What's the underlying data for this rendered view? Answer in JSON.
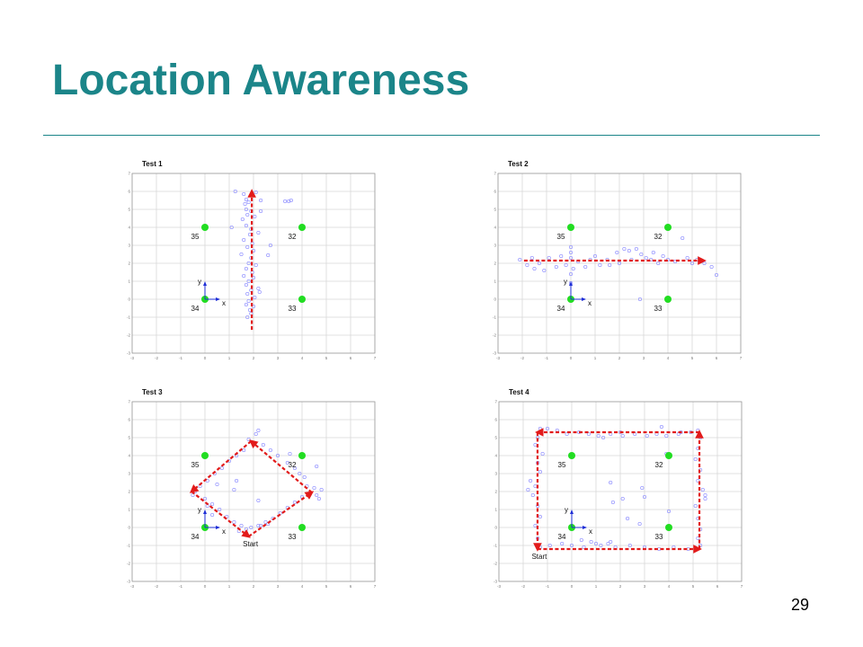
{
  "slide": {
    "title": "Location Awareness",
    "page_number": "29"
  },
  "colors": {
    "title": "#1b8589",
    "rule": "#1b8589",
    "anchor": "#22dd22",
    "path": "#e21b1b",
    "points": "#8e8eff",
    "axis_indicator": "#1f2fd6",
    "grid": "#d8d8d8",
    "frame": "#9a9a9a"
  },
  "chart_data": [
    {
      "type": "scatter",
      "title": "Test 1",
      "xlim": [
        -3,
        7
      ],
      "ylim": [
        -3,
        7
      ],
      "x_ticks": [
        -3,
        -2,
        -1,
        0,
        1,
        2,
        3,
        4,
        5,
        6,
        7
      ],
      "y_ticks": [
        -3,
        -2,
        -1,
        0,
        1,
        2,
        3,
        4,
        5,
        6,
        7
      ],
      "grid": true,
      "anchors": [
        {
          "label": "35",
          "x": 0,
          "y": 4
        },
        {
          "label": "32",
          "x": 4,
          "y": 4
        },
        {
          "label": "34",
          "x": 0,
          "y": 0
        },
        {
          "label": "33",
          "x": 4,
          "y": 0
        }
      ],
      "axis_indicator": {
        "x": 0,
        "y": 0,
        "x_label": "x",
        "y_label": "y"
      },
      "path": [
        [
          1.93,
          -1.7
        ],
        [
          1.93,
          6.0
        ]
      ],
      "points": [
        [
          1.25,
          6.0
        ],
        [
          2.1,
          5.95
        ],
        [
          1.6,
          5.85
        ],
        [
          1.7,
          5.55
        ],
        [
          2.3,
          5.5
        ],
        [
          1.65,
          5.3
        ],
        [
          1.8,
          5.4
        ],
        [
          1.7,
          5.0
        ],
        [
          2.3,
          4.9
        ],
        [
          1.9,
          4.9
        ],
        [
          1.75,
          4.7
        ],
        [
          2.05,
          4.6
        ],
        [
          1.55,
          4.45
        ],
        [
          1.1,
          4.0
        ],
        [
          1.7,
          4.1
        ],
        [
          1.9,
          3.9
        ],
        [
          2.2,
          3.7
        ],
        [
          1.85,
          3.6
        ],
        [
          1.6,
          3.3
        ],
        [
          1.95,
          3.1
        ],
        [
          2.7,
          3.0
        ],
        [
          1.75,
          2.9
        ],
        [
          2.0,
          2.7
        ],
        [
          1.5,
          2.5
        ],
        [
          2.6,
          2.45
        ],
        [
          1.9,
          2.3
        ],
        [
          1.8,
          2.0
        ],
        [
          2.1,
          1.9
        ],
        [
          1.7,
          1.7
        ],
        [
          1.95,
          1.5
        ],
        [
          1.6,
          1.3
        ],
        [
          2.0,
          1.2
        ],
        [
          1.8,
          1.0
        ],
        [
          1.7,
          0.8
        ],
        [
          2.2,
          0.6
        ],
        [
          1.9,
          0.5
        ],
        [
          2.25,
          0.4
        ],
        [
          1.75,
          0.3
        ],
        [
          2.05,
          0.1
        ],
        [
          1.8,
          -0.1
        ],
        [
          1.7,
          -0.3
        ],
        [
          2.0,
          -0.4
        ],
        [
          1.85,
          -0.6
        ],
        [
          1.9,
          -0.8
        ],
        [
          1.75,
          -1.0
        ],
        [
          3.3,
          5.45
        ],
        [
          3.45,
          5.45
        ],
        [
          3.55,
          5.5
        ]
      ]
    },
    {
      "type": "scatter",
      "title": "Test 2",
      "xlim": [
        -3,
        7
      ],
      "ylim": [
        -3,
        7
      ],
      "x_ticks": [
        -3,
        -2,
        -1,
        0,
        1,
        2,
        3,
        4,
        5,
        6,
        7
      ],
      "y_ticks": [
        -3,
        -2,
        -1,
        0,
        1,
        2,
        3,
        4,
        5,
        6,
        7
      ],
      "grid": true,
      "anchors": [
        {
          "label": "35",
          "x": 0,
          "y": 4
        },
        {
          "label": "32",
          "x": 4,
          "y": 4
        },
        {
          "label": "34",
          "x": 0,
          "y": 0
        },
        {
          "label": "33",
          "x": 4,
          "y": 0
        }
      ],
      "axis_indicator": {
        "x": 0,
        "y": 0,
        "x_label": "x",
        "y_label": "y"
      },
      "path": [
        [
          -1.93,
          2.15
        ],
        [
          5.48,
          2.15
        ]
      ],
      "points": [
        [
          -2.1,
          2.2
        ],
        [
          -1.8,
          1.9
        ],
        [
          -1.6,
          2.3
        ],
        [
          -1.5,
          1.7
        ],
        [
          -1.3,
          2.0
        ],
        [
          -1.1,
          1.6
        ],
        [
          -0.9,
          2.3
        ],
        [
          -0.6,
          1.8
        ],
        [
          -0.4,
          2.4
        ],
        [
          -0.2,
          1.9
        ],
        [
          0.0,
          2.9
        ],
        [
          0.0,
          2.6
        ],
        [
          0.0,
          2.3
        ],
        [
          0.1,
          1.7
        ],
        [
          0.0,
          1.4
        ],
        [
          0.0,
          0.9
        ],
        [
          0.3,
          2.1
        ],
        [
          0.6,
          1.8
        ],
        [
          0.8,
          2.2
        ],
        [
          1.0,
          2.4
        ],
        [
          1.2,
          1.9
        ],
        [
          1.5,
          2.2
        ],
        [
          1.6,
          1.9
        ],
        [
          1.9,
          2.6
        ],
        [
          2.0,
          2.0
        ],
        [
          2.2,
          2.8
        ],
        [
          2.4,
          2.7
        ],
        [
          2.5,
          2.2
        ],
        [
          2.7,
          2.8
        ],
        [
          2.9,
          2.5
        ],
        [
          3.1,
          2.3
        ],
        [
          3.3,
          2.2
        ],
        [
          3.4,
          2.6
        ],
        [
          3.6,
          2.0
        ],
        [
          3.8,
          2.4
        ],
        [
          4.0,
          2.2
        ],
        [
          4.3,
          2.1
        ],
        [
          4.6,
          3.4
        ],
        [
          4.8,
          2.3
        ],
        [
          5.0,
          2.0
        ],
        [
          5.2,
          2.2
        ],
        [
          5.5,
          2.0
        ],
        [
          5.8,
          1.8
        ],
        [
          6.0,
          1.35
        ],
        [
          2.85,
          0.0
        ]
      ]
    },
    {
      "type": "scatter",
      "title": "Test 3",
      "xlim": [
        -3,
        7
      ],
      "ylim": [
        -3,
        7
      ],
      "x_ticks": [
        -3,
        -2,
        -1,
        0,
        1,
        2,
        3,
        4,
        5,
        6,
        7
      ],
      "y_ticks": [
        -3,
        -2,
        -1,
        0,
        1,
        2,
        3,
        4,
        5,
        6,
        7
      ],
      "grid": true,
      "anchors": [
        {
          "label": "35",
          "x": 0,
          "y": 4
        },
        {
          "label": "32",
          "x": 4,
          "y": 4
        },
        {
          "label": "34",
          "x": 0,
          "y": 0
        },
        {
          "label": "33",
          "x": 4,
          "y": 0
        }
      ],
      "axis_indicator": {
        "x": 0,
        "y": 0,
        "x_label": "x",
        "y_label": "y"
      },
      "path": [
        [
          1.8,
          -0.5
        ],
        [
          4.4,
          1.95
        ],
        [
          1.9,
          4.8
        ],
        [
          -0.55,
          2.0
        ],
        [
          1.8,
          -0.5
        ]
      ],
      "start_label": "Start",
      "points": [
        [
          2.2,
          0.1
        ],
        [
          2.5,
          0.3
        ],
        [
          2.8,
          0.5
        ],
        [
          3.1,
          0.8
        ],
        [
          3.4,
          1.1
        ],
        [
          3.7,
          1.4
        ],
        [
          4.0,
          1.7
        ],
        [
          4.3,
          1.9
        ],
        [
          4.6,
          1.8
        ],
        [
          4.7,
          1.6
        ],
        [
          4.5,
          2.2
        ],
        [
          4.8,
          2.1
        ],
        [
          4.2,
          2.3
        ],
        [
          4.1,
          2.8
        ],
        [
          3.9,
          3.0
        ],
        [
          3.7,
          3.3
        ],
        [
          3.4,
          3.6
        ],
        [
          3.0,
          4.0
        ],
        [
          2.7,
          4.3
        ],
        [
          2.4,
          4.6
        ],
        [
          2.1,
          5.2
        ],
        [
          2.2,
          5.4
        ],
        [
          1.8,
          4.9
        ],
        [
          4.6,
          3.4
        ],
        [
          3.5,
          4.1
        ],
        [
          1.6,
          4.3
        ],
        [
          1.3,
          4.0
        ],
        [
          1.0,
          3.7
        ],
        [
          0.7,
          3.3
        ],
        [
          0.4,
          3.0
        ],
        [
          0.1,
          2.6
        ],
        [
          -0.2,
          2.3
        ],
        [
          -0.4,
          2.0
        ],
        [
          -0.5,
          1.8
        ],
        [
          0.5,
          2.4
        ],
        [
          1.2,
          2.1
        ],
        [
          1.3,
          2.6
        ],
        [
          0.0,
          1.6
        ],
        [
          0.3,
          1.3
        ],
        [
          0.6,
          1.0
        ],
        [
          0.9,
          0.6
        ],
        [
          1.2,
          0.3
        ],
        [
          1.5,
          0.1
        ],
        [
          1.7,
          -0.1
        ],
        [
          1.9,
          0.0
        ],
        [
          2.3,
          0.1
        ],
        [
          2.6,
          0.2
        ],
        [
          1.4,
          -0.2
        ],
        [
          0.1,
          1.2
        ],
        [
          0.3,
          0.7
        ],
        [
          2.2,
          1.5
        ]
      ]
    },
    {
      "type": "scatter",
      "title": "Test 4",
      "xlim": [
        -3,
        7
      ],
      "ylim": [
        -3,
        7
      ],
      "x_ticks": [
        -3,
        -2,
        -1,
        0,
        1,
        2,
        3,
        4,
        5,
        6,
        7
      ],
      "y_ticks": [
        -3,
        -2,
        -1,
        0,
        1,
        2,
        3,
        4,
        5,
        6,
        7
      ],
      "grid": true,
      "anchors": [
        {
          "label": "35",
          "x": 0,
          "y": 4
        },
        {
          "label": "32",
          "x": 4,
          "y": 4
        },
        {
          "label": "34",
          "x": 0,
          "y": 0
        },
        {
          "label": "33",
          "x": 4,
          "y": 0
        }
      ],
      "axis_indicator": {
        "x": 0,
        "y": 0,
        "x_label": "x",
        "y_label": "y"
      },
      "path": [
        [
          -1.41,
          -1.2
        ],
        [
          5.26,
          -1.2
        ],
        [
          5.26,
          5.3
        ],
        [
          -1.41,
          5.3
        ],
        [
          -1.41,
          -1.2
        ]
      ],
      "start_label": "Start",
      "points": [
        [
          -1.3,
          5.5
        ],
        [
          -1.0,
          5.5
        ],
        [
          -0.6,
          5.4
        ],
        [
          -0.2,
          5.2
        ],
        [
          0.3,
          5.3
        ],
        [
          0.7,
          5.2
        ],
        [
          1.1,
          5.1
        ],
        [
          1.3,
          5.0
        ],
        [
          1.6,
          5.2
        ],
        [
          2.0,
          5.3
        ],
        [
          2.1,
          5.1
        ],
        [
          2.6,
          5.2
        ],
        [
          3.1,
          5.1
        ],
        [
          3.5,
          5.2
        ],
        [
          3.7,
          5.6
        ],
        [
          3.9,
          5.1
        ],
        [
          4.4,
          5.2
        ],
        [
          4.5,
          5.3
        ],
        [
          4.9,
          5.3
        ],
        [
          5.2,
          5.4
        ],
        [
          5.3,
          5.0
        ],
        [
          5.2,
          4.4
        ],
        [
          5.1,
          3.8
        ],
        [
          5.3,
          3.2
        ],
        [
          5.2,
          2.6
        ],
        [
          5.4,
          2.1
        ],
        [
          5.5,
          1.8
        ],
        [
          5.5,
          1.6
        ],
        [
          5.1,
          1.2
        ],
        [
          5.2,
          0.5
        ],
        [
          5.3,
          -0.1
        ],
        [
          5.2,
          -0.6
        ],
        [
          5.3,
          -1.0
        ],
        [
          4.8,
          -1.2
        ],
        [
          4.2,
          -1.1
        ],
        [
          3.6,
          -1.2
        ],
        [
          3.0,
          -1.1
        ],
        [
          2.4,
          -1.0
        ],
        [
          1.8,
          -1.1
        ],
        [
          1.6,
          -0.8
        ],
        [
          1.5,
          -0.9
        ],
        [
          1.2,
          -1.0
        ],
        [
          1.0,
          -0.9
        ],
        [
          0.8,
          -0.8
        ],
        [
          0.5,
          -1.1
        ],
        [
          0.4,
          -0.7
        ],
        [
          0.0,
          -1.0
        ],
        [
          -0.4,
          -0.9
        ],
        [
          -0.9,
          -1.0
        ],
        [
          -1.3,
          -1.1
        ],
        [
          -1.4,
          -0.6
        ],
        [
          -1.5,
          0.1
        ],
        [
          -1.3,
          0.6
        ],
        [
          -1.4,
          1.2
        ],
        [
          -1.6,
          1.8
        ],
        [
          -1.8,
          2.1
        ],
        [
          -1.5,
          2.3
        ],
        [
          -1.7,
          2.6
        ],
        [
          -1.3,
          3.1
        ],
        [
          -1.4,
          3.6
        ],
        [
          -1.2,
          4.1
        ],
        [
          -1.5,
          4.6
        ],
        [
          -1.4,
          5.0
        ],
        [
          1.6,
          2.5
        ],
        [
          2.9,
          2.2
        ],
        [
          1.7,
          1.4
        ],
        [
          3.0,
          1.7
        ],
        [
          2.3,
          0.5
        ],
        [
          2.8,
          0.2
        ],
        [
          4.0,
          0.9
        ],
        [
          2.1,
          1.6
        ],
        [
          3.9,
          4.1
        ]
      ]
    }
  ]
}
